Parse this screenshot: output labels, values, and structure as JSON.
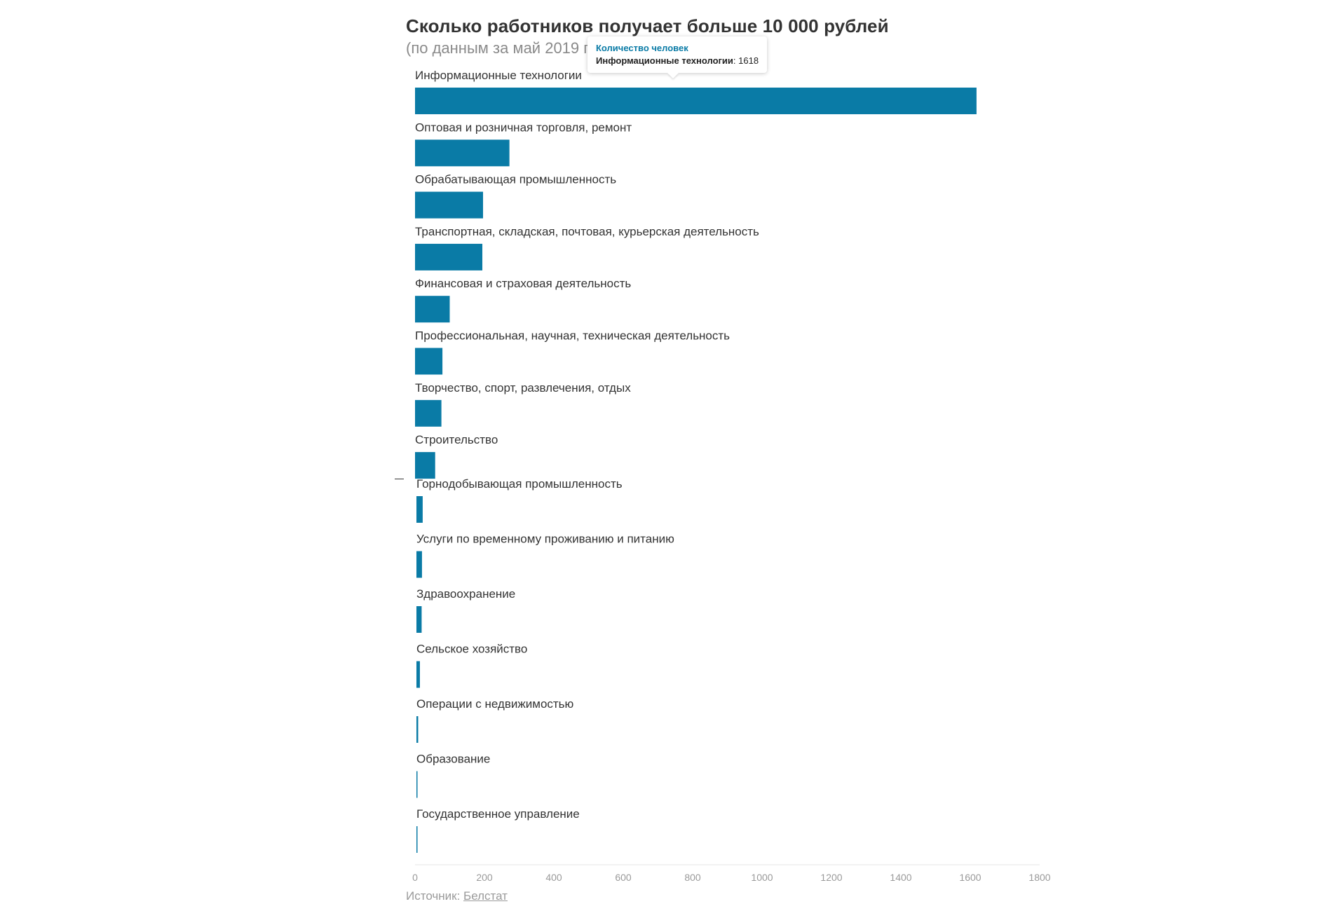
{
  "header": {
    "title": "Сколько работников получает больше 10 000 рублей",
    "subtitle": "(по данным за май 2019 г"
  },
  "tooltip": {
    "title": "Количество человек",
    "category": "Информационные технологии",
    "value_text": "1618"
  },
  "footer": {
    "source_label": "Источник: ",
    "source_link": "Белстат"
  },
  "chart_data": {
    "type": "bar",
    "orientation": "horizontal",
    "title": "Сколько работников получает больше 10 000 рублей",
    "subtitle": "(по данным за май 2019 г",
    "categories": [
      "Информационные технологии",
      "Оптовая и розничная торговля, ремонт",
      "Обрабатывающая промышленность",
      "Транспортная, складская, почтовая, курьерская деятельность",
      "Финансовая и страховая деятельность",
      "Профессиональная, научная, техническая деятельность",
      "Творчество, спорт, развлечения, отдых",
      "Строительство",
      "Горнодобывающая промышленность",
      "Услуги по временному проживанию и питанию",
      "Здравоохранение",
      "Сельское хозяйство",
      "Операции с недвижимостью",
      "Образование",
      "Государственное управление"
    ],
    "series": [
      {
        "name": "Количество человек",
        "values": [
          1618,
          272,
          196,
          194,
          100,
          79,
          76,
          58,
          18,
          16,
          15,
          10,
          5,
          3,
          2
        ]
      }
    ],
    "x_ticks": [
      0,
      200,
      400,
      600,
      800,
      1000,
      1200,
      1400,
      1600,
      1800
    ],
    "xlim": [
      0,
      1800
    ],
    "xlabel": "",
    "ylabel": "",
    "grid": false,
    "legend": "none",
    "colors": {
      "bar": "#0a7ba6",
      "text": "#333333",
      "muted": "#9a9a9a",
      "tooltip_title": "#0a7ba6"
    }
  }
}
